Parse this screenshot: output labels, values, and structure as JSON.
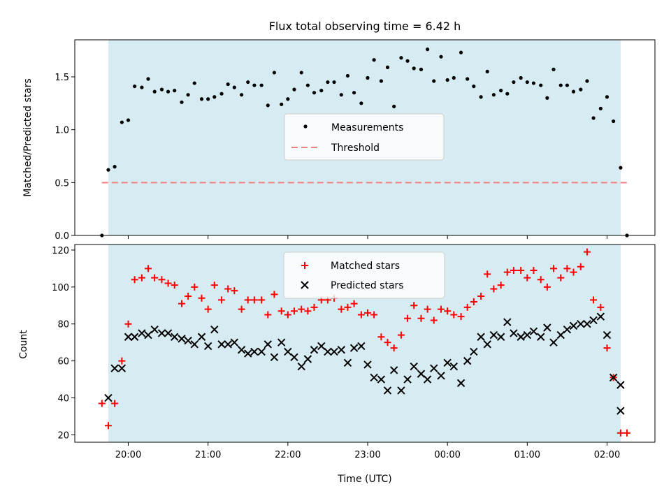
{
  "chart_data": {
    "type": "scatter",
    "title": "Flux total observing time = 6.42 h",
    "xlabel": "Time (UTC)",
    "x_tick_labels": [
      "20:00",
      "21:00",
      "22:00",
      "23:00",
      "00:00",
      "01:00",
      "02:00"
    ],
    "x_tick_hours": [
      20,
      21,
      22,
      23,
      24,
      25,
      26
    ],
    "xlim": [
      19.33,
      26.6
    ],
    "observing_window": {
      "start": 19.75,
      "end": 26.17,
      "color": "#add8e6"
    },
    "grid": false,
    "top_panel": {
      "ylabel": "Matched/Predicted stars",
      "ylim": [
        0,
        1.85
      ],
      "y_ticks": [
        0.0,
        0.5,
        1.0,
        1.5
      ],
      "y_tick_labels": [
        "0.0",
        "0.5",
        "1.0",
        "1.5"
      ],
      "legend_location": "center",
      "legend": [
        "Measurements",
        "Threshold"
      ],
      "threshold": {
        "value": 0.5,
        "x_range": [
          19.67,
          26.25
        ],
        "color": "#f08080",
        "style": "dashed"
      },
      "measurements": {
        "color": "#000000",
        "x": [
          19.67,
          19.75,
          19.83,
          19.92,
          20.0,
          20.08,
          20.17,
          20.25,
          20.33,
          20.42,
          20.5,
          20.58,
          20.67,
          20.75,
          20.83,
          20.92,
          21.0,
          21.08,
          21.17,
          21.25,
          21.33,
          21.42,
          21.5,
          21.58,
          21.67,
          21.75,
          21.83,
          21.92,
          22.0,
          22.08,
          22.17,
          22.25,
          22.33,
          22.42,
          22.5,
          22.58,
          22.67,
          22.75,
          22.83,
          22.92,
          23.0,
          23.08,
          23.17,
          23.25,
          23.33,
          23.42,
          23.5,
          23.58,
          23.67,
          23.75,
          23.83,
          23.92,
          24.0,
          24.08,
          24.17,
          24.25,
          24.33,
          24.42,
          24.5,
          24.58,
          24.67,
          24.75,
          24.83,
          24.92,
          25.0,
          25.08,
          25.17,
          25.25,
          25.33,
          25.42,
          25.5,
          25.58,
          25.67,
          25.75,
          25.83,
          25.92,
          26.0,
          26.08,
          26.17,
          26.25
        ],
        "y": [
          0.0,
          0.62,
          0.65,
          1.07,
          1.09,
          1.41,
          1.4,
          1.48,
          1.36,
          1.38,
          1.36,
          1.37,
          1.26,
          1.33,
          1.44,
          1.29,
          1.29,
          1.31,
          1.34,
          1.43,
          1.4,
          1.33,
          1.45,
          1.42,
          1.42,
          1.23,
          1.54,
          1.24,
          1.29,
          1.38,
          1.54,
          1.42,
          1.35,
          1.37,
          1.45,
          1.45,
          1.33,
          1.51,
          1.35,
          1.25,
          1.49,
          1.66,
          1.46,
          1.59,
          1.22,
          1.68,
          1.65,
          1.58,
          1.57,
          1.76,
          1.46,
          1.69,
          1.47,
          1.49,
          1.73,
          1.48,
          1.41,
          1.31,
          1.55,
          1.33,
          1.37,
          1.34,
          1.45,
          1.49,
          1.45,
          1.44,
          1.42,
          1.3,
          1.57,
          1.42,
          1.42,
          1.36,
          1.38,
          1.46,
          1.11,
          1.2,
          1.31,
          1.08,
          0.64,
          0.0
        ]
      }
    },
    "bottom_panel": {
      "ylabel": "Count",
      "ylim": [
        16,
        123
      ],
      "y_ticks": [
        20,
        40,
        60,
        80,
        100,
        120
      ],
      "y_tick_labels": [
        "20",
        "40",
        "60",
        "80",
        "100",
        "120"
      ],
      "legend_location": "upper center",
      "series": [
        {
          "name": "Matched stars",
          "marker": "plus",
          "color": "#ff0000",
          "x": [
            19.67,
            19.75,
            19.83,
            19.92,
            20.0,
            20.08,
            20.17,
            20.25,
            20.33,
            20.42,
            20.5,
            20.58,
            20.67,
            20.75,
            20.83,
            20.92,
            21.0,
            21.08,
            21.17,
            21.25,
            21.33,
            21.42,
            21.5,
            21.58,
            21.67,
            21.75,
            21.83,
            21.92,
            22.0,
            22.08,
            22.17,
            22.25,
            22.33,
            22.42,
            22.5,
            22.58,
            22.67,
            22.75,
            22.83,
            22.92,
            23.0,
            23.08,
            23.17,
            23.25,
            23.33,
            23.42,
            23.5,
            23.58,
            23.67,
            23.75,
            23.83,
            23.92,
            24.0,
            24.08,
            24.17,
            24.25,
            24.33,
            24.42,
            24.5,
            24.58,
            24.67,
            24.75,
            24.83,
            24.92,
            25.0,
            25.08,
            25.17,
            25.25,
            25.33,
            25.42,
            25.5,
            25.58,
            25.67,
            25.75,
            25.83,
            25.92,
            26.0,
            26.08,
            26.17,
            26.25
          ],
          "values": [
            37,
            25,
            37,
            60,
            80,
            104,
            105,
            110,
            105,
            104,
            102,
            101,
            91,
            95,
            100,
            94,
            88,
            101,
            93,
            99,
            98,
            88,
            93,
            93,
            93,
            85,
            96,
            87,
            85,
            87,
            88,
            87,
            89,
            93,
            93,
            94,
            88,
            89,
            91,
            85,
            86,
            85,
            73,
            70,
            67,
            74,
            83,
            90,
            83,
            88,
            82,
            88,
            87,
            85,
            84,
            89,
            92,
            95,
            107,
            99,
            101,
            108,
            109,
            109,
            105,
            109,
            104,
            100,
            110,
            105,
            110,
            108,
            111,
            119,
            93,
            89,
            67,
            51,
            21,
            21
          ]
        },
        {
          "name": "Predicted stars",
          "marker": "x",
          "color": "#000000",
          "x": [
            19.75,
            19.83,
            19.92,
            20.0,
            20.08,
            20.17,
            20.25,
            20.33,
            20.42,
            20.5,
            20.58,
            20.67,
            20.75,
            20.83,
            20.92,
            21.0,
            21.08,
            21.17,
            21.25,
            21.33,
            21.42,
            21.5,
            21.58,
            21.67,
            21.75,
            21.83,
            21.92,
            22.0,
            22.08,
            22.17,
            22.25,
            22.33,
            22.42,
            22.5,
            22.58,
            22.67,
            22.75,
            22.83,
            22.92,
            23.0,
            23.08,
            23.17,
            23.25,
            23.33,
            23.42,
            23.5,
            23.58,
            23.67,
            23.75,
            23.83,
            23.92,
            24.0,
            24.08,
            24.17,
            24.25,
            24.33,
            24.42,
            24.5,
            24.58,
            24.67,
            24.75,
            24.83,
            24.92,
            25.0,
            25.08,
            25.17,
            25.25,
            25.33,
            25.42,
            25.5,
            25.58,
            25.67,
            25.75,
            25.83,
            25.92,
            26.0,
            26.08,
            26.17
          ],
          "values": [
            40,
            56,
            56,
            73,
            73,
            75,
            74,
            77,
            75,
            75,
            73,
            72,
            71,
            69,
            73,
            68,
            77,
            69,
            69,
            70,
            66,
            64,
            65,
            65,
            69,
            62,
            70,
            65,
            62,
            57,
            61,
            66,
            68,
            65,
            65,
            66,
            59,
            67,
            68,
            58,
            51,
            50,
            44,
            55,
            44,
            50,
            57,
            53,
            50,
            56,
            52,
            59,
            57,
            48,
            60,
            65,
            73,
            69,
            74,
            73,
            81,
            75,
            73,
            74,
            76,
            73,
            78,
            70,
            74,
            77,
            79,
            80,
            80,
            82,
            84,
            74,
            51,
            47
          ]
        },
        {
          "name": "",
          "marker": "x",
          "color": "#000000",
          "x": [
            26.17
          ],
          "values": [
            33
          ]
        }
      ]
    }
  }
}
